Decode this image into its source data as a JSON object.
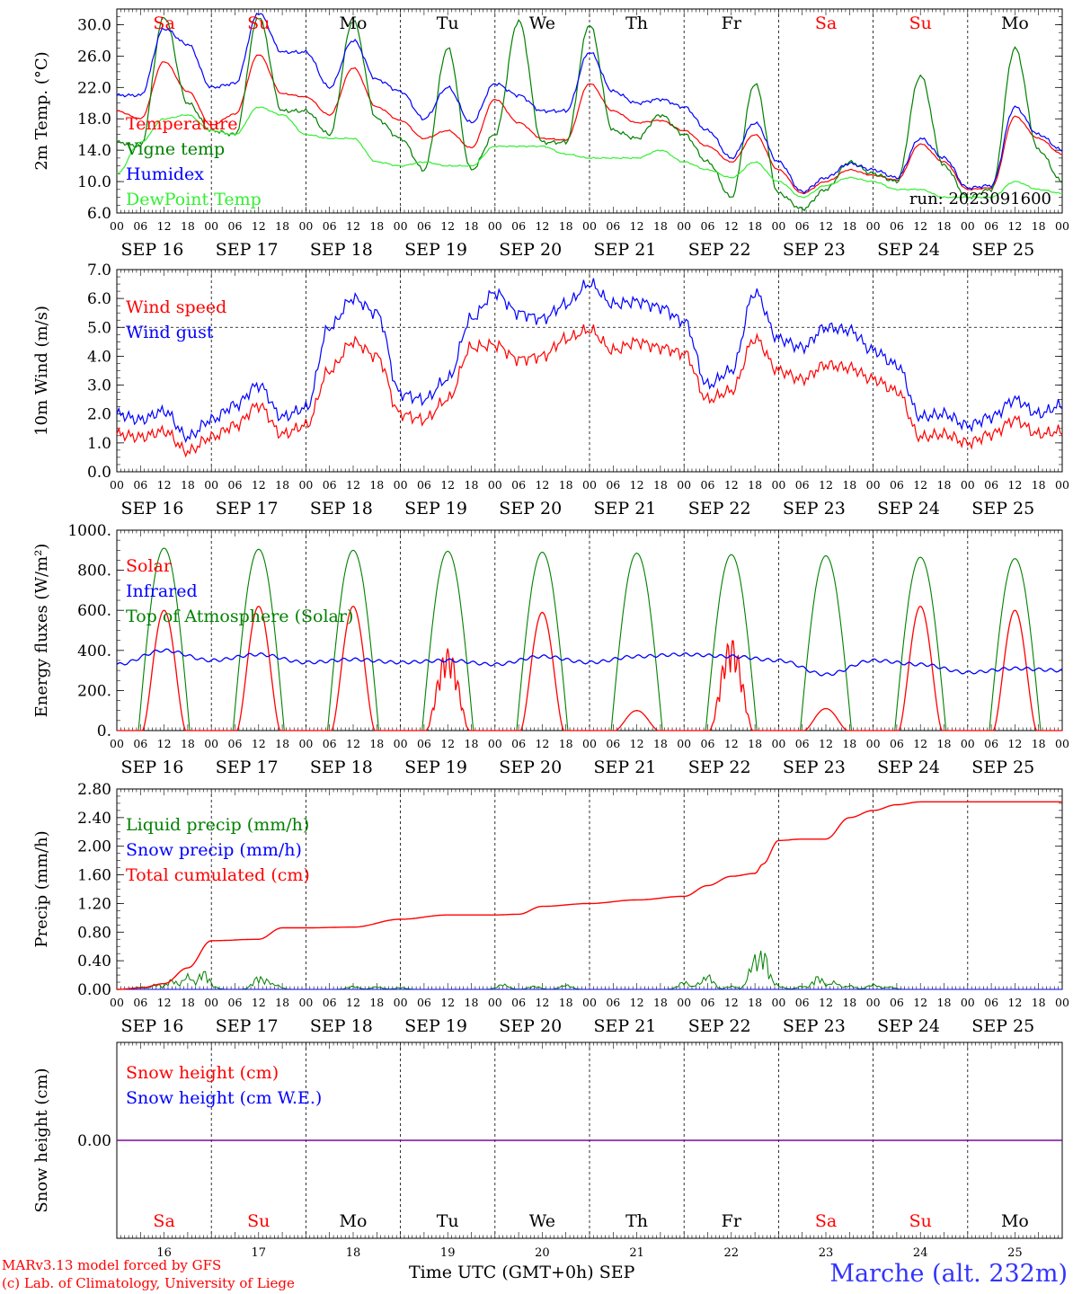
{
  "footer": {
    "credit_line1": "MARv3.13 model forced by GFS",
    "credit_line2": "(c) Lab. of Climatology, University of Liege",
    "x_title": "Time UTC (GMT+0h) SEP",
    "location": "Marche (alt. 232m)"
  },
  "colors": {
    "red": "#ff0000",
    "green": "#008000",
    "blue": "#0000ff",
    "light_green": "#33ee33",
    "weekend": "#ff0000",
    "weekday": "#000000",
    "purple": "#800080"
  },
  "chart_data": [
    {
      "id": "temp",
      "type": "line",
      "ylabel": "2m Temp. (°C)",
      "ylim": [
        6.0,
        32.0
      ],
      "yticks": [
        6.0,
        10.0,
        14.0,
        18.0,
        22.0,
        26.0,
        30.0
      ],
      "ytick_labels": [
        "6.0",
        "10.0",
        "14.0",
        "18.0",
        "22.0",
        "26.0",
        "30.0"
      ],
      "x_unit": "hours since SEP 16 00 UTC",
      "xlim": [
        0,
        240
      ],
      "grid": "vertical dashed at midnights",
      "legend_position": "left",
      "annotation": "run: 2023091600",
      "day_names": [
        "Sa",
        "Su",
        "Mo",
        "Tu",
        "We",
        "Th",
        "Fr",
        "Sa",
        "Su",
        "Mo"
      ],
      "series": [
        {
          "name": "Temperature",
          "color": "#ff0000",
          "x": [
            0,
            6,
            12,
            18,
            24,
            30,
            36,
            42,
            48,
            54,
            60,
            66,
            72,
            78,
            84,
            90,
            96,
            102,
            108,
            114,
            120,
            126,
            132,
            138,
            144,
            150,
            156,
            162,
            168,
            174,
            180,
            186,
            192,
            198,
            204,
            210,
            216,
            222,
            228,
            234,
            240
          ],
          "y": [
            19,
            18,
            25.3,
            21.5,
            17.2,
            18.6,
            26.2,
            21.2,
            20.8,
            18.5,
            24.5,
            19.5,
            17.8,
            15.5,
            16.5,
            14.3,
            20.5,
            17.5,
            15.5,
            15.3,
            22.5,
            19,
            17.5,
            17.8,
            16.5,
            14.5,
            12.5,
            16,
            11.5,
            8.5,
            10,
            11.5,
            10.8,
            10.2,
            14.8,
            12.5,
            9,
            9.2,
            18.3,
            15.5,
            13.5
          ]
        },
        {
          "name": "Vigne temp",
          "color": "#008000",
          "x": [
            0,
            6,
            12,
            18,
            24,
            30,
            36,
            42,
            48,
            54,
            60,
            66,
            72,
            78,
            84,
            90,
            96,
            102,
            108,
            114,
            120,
            126,
            132,
            138,
            144,
            150,
            156,
            162,
            168,
            174,
            180,
            186,
            192,
            198,
            204,
            210,
            216,
            222,
            228,
            234,
            240
          ],
          "y": [
            15,
            14.5,
            31,
            20,
            16.5,
            16,
            31,
            19,
            19,
            16,
            30.5,
            18,
            15.5,
            11.5,
            27,
            11.5,
            16,
            30.5,
            15,
            15,
            30,
            16.5,
            15.5,
            18.5,
            16,
            12.5,
            8,
            22.5,
            8.5,
            6.5,
            9,
            12.5,
            11,
            10,
            23.5,
            12,
            8,
            9,
            27,
            14,
            10
          ]
        },
        {
          "name": "Humidex",
          "color": "#0000ff",
          "x": [
            0,
            6,
            12,
            18,
            24,
            30,
            36,
            42,
            48,
            54,
            60,
            66,
            72,
            78,
            84,
            90,
            96,
            102,
            108,
            114,
            120,
            126,
            132,
            138,
            144,
            150,
            156,
            162,
            168,
            174,
            180,
            186,
            192,
            198,
            204,
            210,
            216,
            222,
            228,
            234,
            240
          ],
          "y": [
            21,
            21,
            29.5,
            27.5,
            22,
            22.5,
            31.5,
            26.5,
            26.5,
            22,
            28,
            23,
            21.5,
            18,
            22,
            17.5,
            22.5,
            21,
            19,
            19,
            26.5,
            21.5,
            20,
            20.5,
            19.5,
            16.5,
            13,
            17.5,
            12.5,
            8.7,
            10.5,
            12.3,
            11.5,
            10.5,
            15.5,
            13,
            9.2,
            9.5,
            19.5,
            16,
            14
          ]
        },
        {
          "name": "DewPoint Temp",
          "color": "#33ee33",
          "x": [
            0,
            6,
            12,
            18,
            24,
            30,
            36,
            42,
            48,
            54,
            60,
            66,
            72,
            78,
            84,
            90,
            96,
            102,
            108,
            114,
            120,
            126,
            132,
            138,
            144,
            150,
            156,
            162,
            168,
            174,
            180,
            186,
            192,
            198,
            204,
            210,
            216,
            222,
            228,
            234,
            240
          ],
          "y": [
            11,
            15,
            18,
            18.5,
            16.5,
            16,
            19.5,
            18.5,
            16,
            15.5,
            15.5,
            12.5,
            12,
            12.5,
            12,
            12,
            14.5,
            14.5,
            14.5,
            13.5,
            13,
            13,
            13,
            14,
            12.5,
            11.5,
            10.5,
            12.5,
            10,
            8,
            9.5,
            10.5,
            10,
            9,
            9,
            8,
            8,
            8,
            10,
            9,
            8.5
          ]
        }
      ]
    },
    {
      "id": "wind",
      "type": "line",
      "ylabel": "10m Wind (m/s)",
      "ylim": [
        0.0,
        7.0
      ],
      "yticks": [
        0,
        1,
        2,
        3,
        4,
        5,
        6,
        7
      ],
      "ytick_labels": [
        "0.0",
        "1.0",
        "2.0",
        "3.0",
        "4.0",
        "5.0",
        "6.0",
        "7.0"
      ],
      "x_unit": "hours since SEP 16 00 UTC",
      "xlim": [
        0,
        240
      ],
      "reference_line": 5.0,
      "legend_position": "left",
      "series": [
        {
          "name": "Wind speed",
          "color": "#ff0000",
          "x": [
            0,
            6,
            12,
            18,
            24,
            30,
            36,
            42,
            48,
            54,
            60,
            66,
            72,
            78,
            84,
            90,
            96,
            102,
            108,
            114,
            120,
            126,
            132,
            138,
            144,
            150,
            156,
            162,
            168,
            174,
            180,
            186,
            192,
            198,
            204,
            210,
            216,
            222,
            228,
            234,
            240
          ],
          "y": [
            1.3,
            1.2,
            1.4,
            0.7,
            1.2,
            1.6,
            2.3,
            1.3,
            1.6,
            3.5,
            4.5,
            4.0,
            2.0,
            1.8,
            2.5,
            4.3,
            4.4,
            3.9,
            4.0,
            4.6,
            4.9,
            4.2,
            4.5,
            4.3,
            4.1,
            2.5,
            2.8,
            4.6,
            3.5,
            3.2,
            3.7,
            3.6,
            3.2,
            2.8,
            1.2,
            1.3,
            1.0,
            1.3,
            1.8,
            1.3,
            1.4
          ]
        },
        {
          "name": "Wind gust",
          "color": "#0000ff",
          "x": [
            0,
            6,
            12,
            18,
            24,
            30,
            36,
            42,
            48,
            54,
            60,
            66,
            72,
            78,
            84,
            90,
            96,
            102,
            108,
            114,
            120,
            126,
            132,
            138,
            144,
            150,
            156,
            162,
            168,
            174,
            180,
            186,
            192,
            198,
            204,
            210,
            216,
            222,
            228,
            234,
            240
          ],
          "y": [
            2.0,
            1.8,
            2.1,
            1.2,
            1.8,
            2.3,
            3.0,
            1.9,
            2.2,
            5.0,
            6.0,
            5.5,
            2.7,
            2.5,
            3.2,
            5.3,
            6.2,
            5.5,
            5.3,
            5.8,
            6.5,
            5.8,
            5.9,
            5.7,
            5.2,
            3.0,
            3.5,
            6.2,
            4.6,
            4.3,
            5.0,
            4.9,
            4.2,
            3.7,
            1.9,
            2.0,
            1.6,
            1.9,
            2.5,
            2.0,
            2.3
          ]
        }
      ]
    },
    {
      "id": "energy",
      "type": "line",
      "ylabel": "Energy fluxes (W/m²)",
      "ylim": [
        0,
        1000
      ],
      "yticks": [
        0,
        200,
        400,
        600,
        800,
        1000
      ],
      "ytick_labels": [
        "0.",
        "200.",
        "400.",
        "600.",
        "800.",
        "1000."
      ],
      "x_unit": "hours since SEP 16 00 UTC",
      "xlim": [
        0,
        240
      ],
      "legend_position": "left",
      "series": [
        {
          "name": "Solar",
          "color": "#ff0000",
          "daily_peak": [
            600,
            620,
            620,
            410,
            590,
            100,
            460,
            110,
            620,
            600
          ]
        },
        {
          "name": "Infrared",
          "color": "#0000ff",
          "x": [
            0,
            12,
            24,
            36,
            48,
            60,
            72,
            84,
            96,
            108,
            120,
            132,
            144,
            156,
            168,
            180,
            192,
            204,
            216,
            228,
            240
          ],
          "y": [
            330,
            400,
            350,
            380,
            340,
            355,
            340,
            350,
            330,
            370,
            340,
            370,
            380,
            370,
            350,
            280,
            350,
            330,
            290,
            310,
            300
          ]
        },
        {
          "name": "Top of Atmosphere (Solar)",
          "color": "#008000",
          "daily_peak": [
            910,
            905,
            900,
            895,
            890,
            885,
            878,
            872,
            865,
            858
          ]
        }
      ]
    },
    {
      "id": "precip",
      "type": "line",
      "ylabel": "Precip (mm/h)",
      "ylim": [
        0.0,
        2.8
      ],
      "yticks": [
        0.0,
        0.4,
        0.8,
        1.2,
        1.6,
        2.0,
        2.4,
        2.8
      ],
      "ytick_labels": [
        "0.00",
        "0.40",
        "0.80",
        "1.20",
        "1.60",
        "2.00",
        "2.40",
        "2.80"
      ],
      "x_unit": "hours since SEP 16 00 UTC",
      "xlim": [
        0,
        240
      ],
      "legend_position": "left",
      "series": [
        {
          "name": "Liquid precip (mm/h)",
          "color": "#008000",
          "x": [
            6,
            10,
            14,
            18,
            22,
            24,
            36,
            38,
            40,
            60,
            66,
            72,
            98,
            106,
            114,
            144,
            148,
            150,
            156,
            162,
            164,
            166,
            168,
            174,
            178,
            182,
            186,
            192,
            196
          ],
          "y": [
            0.04,
            0.08,
            0.15,
            0.22,
            0.28,
            0.05,
            0.2,
            0.15,
            0.08,
            0.05,
            0.04,
            0.03,
            0.08,
            0.05,
            0.07,
            0.12,
            0.1,
            0.22,
            0.05,
            0.5,
            0.6,
            0.15,
            0.05,
            0.05,
            0.2,
            0.12,
            0.06,
            0.08,
            0.04
          ]
        },
        {
          "name": "Snow precip (mm/h)",
          "color": "#0000ff",
          "x": [
            0,
            240
          ],
          "y": [
            0,
            0
          ]
        },
        {
          "name": "Total cumulated (cm)",
          "color": "#ff0000",
          "x": [
            0,
            6,
            12,
            18,
            24,
            36,
            42,
            48,
            60,
            72,
            84,
            96,
            102,
            108,
            120,
            132,
            144,
            150,
            156,
            162,
            164,
            168,
            174,
            180,
            186,
            192,
            198,
            204,
            216,
            228,
            240
          ],
          "y": [
            0,
            0.02,
            0.08,
            0.3,
            0.68,
            0.7,
            0.86,
            0.86,
            0.87,
            0.98,
            1.04,
            1.04,
            1.05,
            1.16,
            1.2,
            1.25,
            1.3,
            1.45,
            1.58,
            1.62,
            1.75,
            2.08,
            2.1,
            2.1,
            2.4,
            2.5,
            2.58,
            2.62,
            2.62,
            2.62,
            2.62
          ]
        }
      ]
    },
    {
      "id": "snow",
      "type": "line",
      "ylabel": "Snow height (cm)",
      "ylim": [
        -1,
        1
      ],
      "yticks": [
        0.0
      ],
      "ytick_labels": [
        "0.00"
      ],
      "x_unit": "hours since SEP 16 00 UTC",
      "xlim": [
        0,
        240
      ],
      "legend_position": "left",
      "day_names": [
        "Sa",
        "Su",
        "Mo",
        "Tu",
        "We",
        "Th",
        "Fr",
        "Sa",
        "Su",
        "Mo"
      ],
      "day_numbers": [
        "16",
        "17",
        "18",
        "19",
        "20",
        "21",
        "22",
        "23",
        "24",
        "25"
      ],
      "series": [
        {
          "name": "Snow height (cm)",
          "color": "#ff0000",
          "x": [
            0,
            240
          ],
          "y": [
            0,
            0
          ]
        },
        {
          "name": "Snow height (cm W.E.)",
          "color": "#0000ff",
          "x": [
            0,
            240
          ],
          "y": [
            0,
            0
          ]
        }
      ]
    }
  ],
  "x_axis": {
    "hour_labels": [
      "00",
      "06",
      "12",
      "18"
    ],
    "end_label": "00",
    "date_labels": [
      "SEP 16",
      "SEP 17",
      "SEP 18",
      "SEP 19",
      "SEP 20",
      "SEP 21",
      "SEP 22",
      "SEP 23",
      "SEP 24",
      "SEP 25"
    ],
    "weekend_days": [
      0,
      1,
      7,
      8
    ]
  }
}
